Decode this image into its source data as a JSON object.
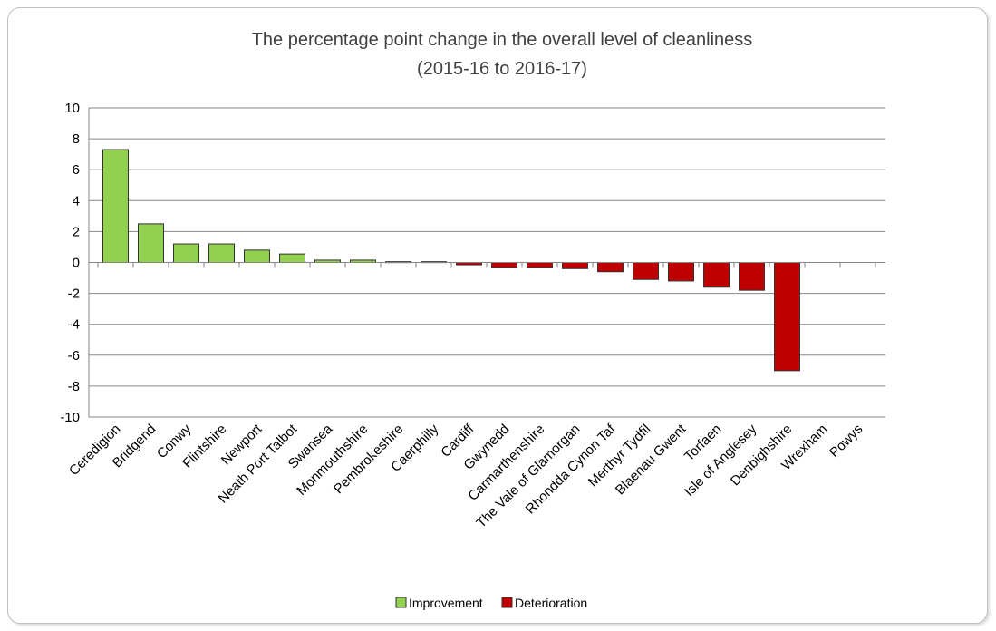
{
  "chart_data": {
    "type": "bar",
    "title": "The percentage point change in the overall level of cleanliness",
    "subtitle": "(2015-16  to 2016-17)",
    "xlabel": "",
    "ylabel": "",
    "ylim": [
      -10,
      10
    ],
    "yticks": [
      10,
      8,
      6,
      4,
      2,
      0,
      -2,
      -4,
      -6,
      -8,
      -10
    ],
    "ytick_labels": [
      "10",
      "8",
      "6",
      "4",
      "2",
      "0",
      "-2",
      "-4",
      "-6",
      "-8",
      "-10"
    ],
    "grid": true,
    "legend_position": "bottom",
    "categories": [
      "Ceredigion",
      "Bridgend",
      "Conwy",
      "Flintshire",
      "Newport",
      "Neath Port Talbot",
      "Swansea",
      "Monmouthshire",
      "Pembrokeshire",
      "Caerphilly",
      "Cardiff",
      "Gwynedd",
      "Carmarthenshire",
      "The Vale of Glamorgan",
      "Rhondda Cynon Taf",
      "Merthyr Tydfil",
      "Blaenau Gwent",
      "Torfaen",
      "Isle of Anglesey",
      "Denbighshire",
      "Wrexham",
      "Powys"
    ],
    "values": [
      7.3,
      2.5,
      1.2,
      1.2,
      0.8,
      0.55,
      0.15,
      0.15,
      0.05,
      0.05,
      -0.15,
      -0.35,
      -0.35,
      -0.4,
      -0.6,
      -1.1,
      -1.2,
      -1.6,
      -1.8,
      -7.0,
      0,
      0
    ],
    "series": [
      {
        "name": "Improvement",
        "color": "#92d050"
      },
      {
        "name": "Deterioration",
        "color": "#c00000"
      }
    ]
  },
  "colors": {
    "improvement": "#92d050",
    "deterioration": "#c00000",
    "grid": "#868686",
    "bar_border": "#333333"
  }
}
